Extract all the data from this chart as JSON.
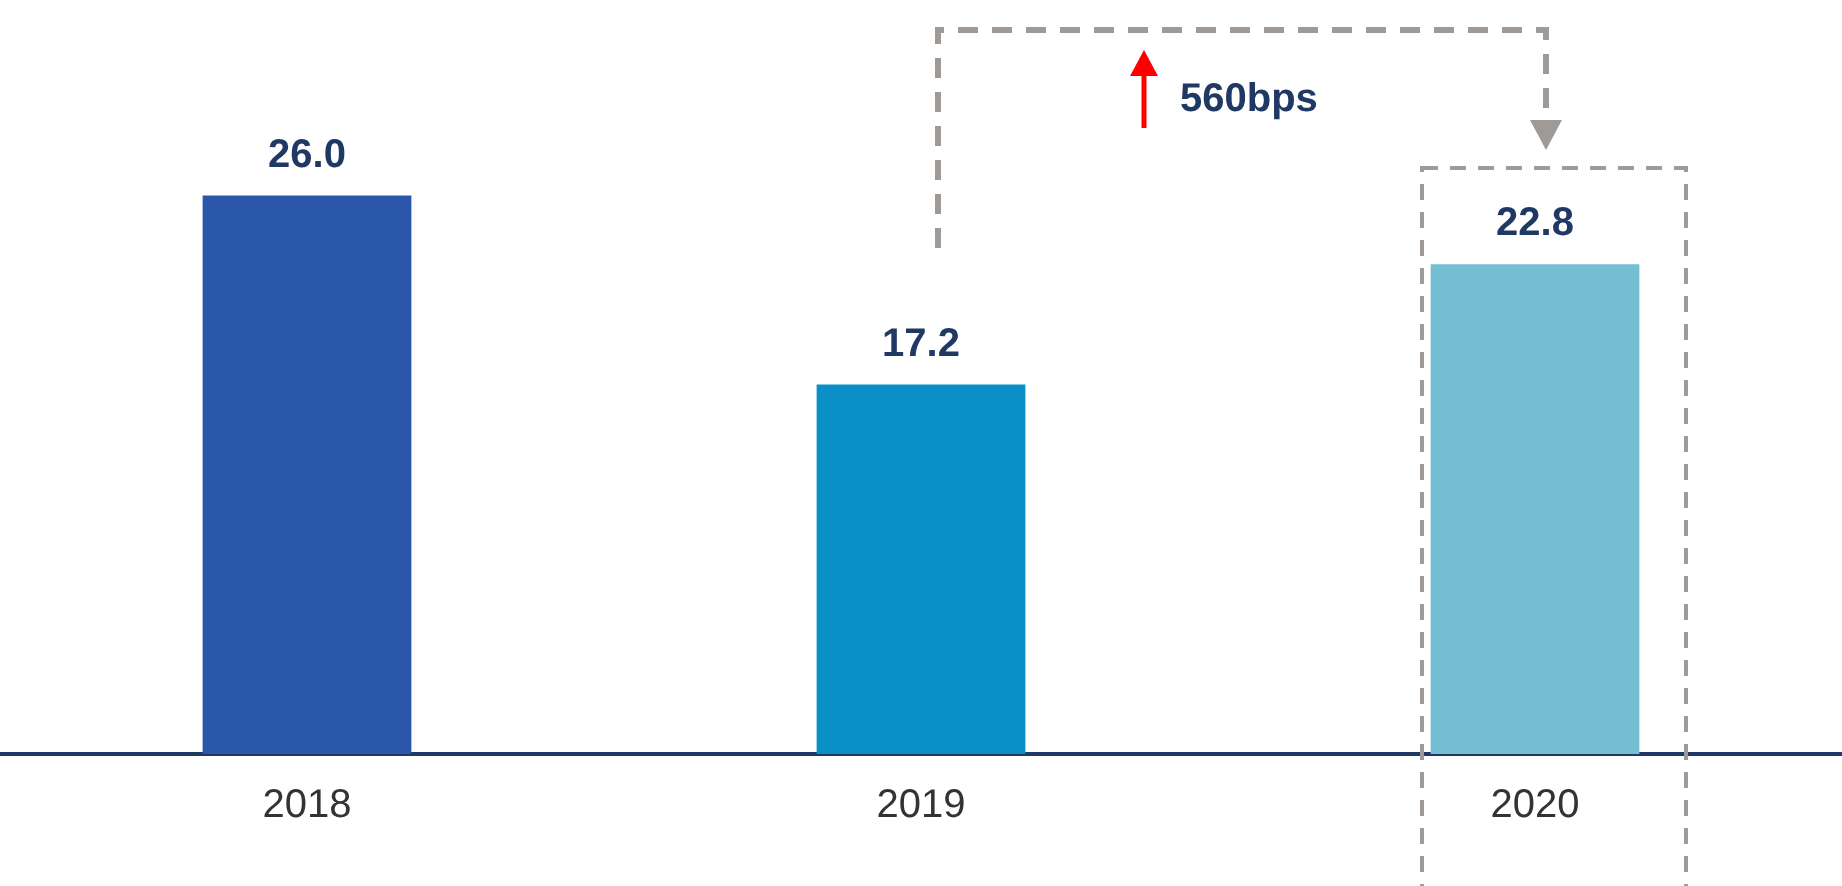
{
  "chart_data": {
    "type": "bar",
    "categories": [
      "2018",
      "2019",
      "2020"
    ],
    "values": [
      26.0,
      17.2,
      22.8
    ],
    "colors": [
      "#2b57aa",
      "#0a8fc7",
      "#75bfd3"
    ],
    "value_labels": [
      "26.0",
      "17.2",
      "22.8"
    ],
    "annotations": [
      "560bps"
    ]
  }
}
